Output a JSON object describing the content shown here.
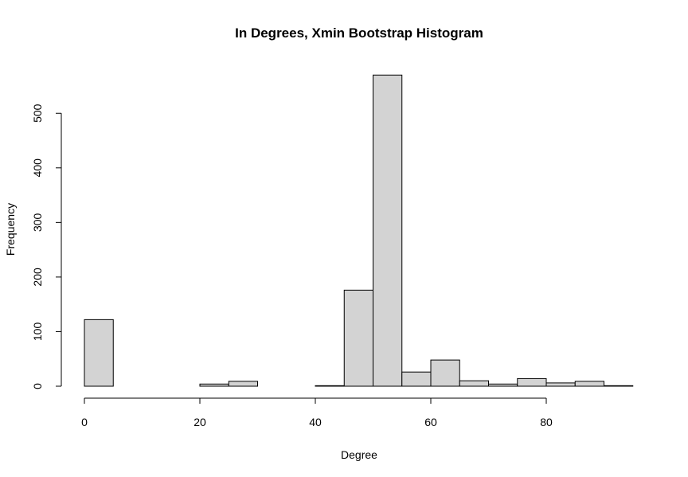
{
  "chart_data": {
    "type": "bar",
    "title": "In Degrees, Xmin Bootstrap Histogram",
    "xlabel": "Degree",
    "ylabel": "Frequency",
    "xlim": [
      0,
      95
    ],
    "ylim": [
      0,
      570
    ],
    "x_ticks": [
      0,
      20,
      40,
      60,
      80
    ],
    "y_ticks": [
      0,
      100,
      200,
      300,
      400,
      500
    ],
    "bin_width": 5,
    "bins": [
      {
        "start": 0,
        "end": 5,
        "count": 122
      },
      {
        "start": 5,
        "end": 10,
        "count": 0
      },
      {
        "start": 10,
        "end": 15,
        "count": 0
      },
      {
        "start": 15,
        "end": 20,
        "count": 0
      },
      {
        "start": 20,
        "end": 25,
        "count": 4
      },
      {
        "start": 25,
        "end": 30,
        "count": 9
      },
      {
        "start": 30,
        "end": 35,
        "count": 0
      },
      {
        "start": 35,
        "end": 40,
        "count": 0
      },
      {
        "start": 40,
        "end": 45,
        "count": 1
      },
      {
        "start": 45,
        "end": 50,
        "count": 176
      },
      {
        "start": 50,
        "end": 55,
        "count": 570
      },
      {
        "start": 55,
        "end": 60,
        "count": 26
      },
      {
        "start": 60,
        "end": 65,
        "count": 48
      },
      {
        "start": 65,
        "end": 70,
        "count": 10
      },
      {
        "start": 70,
        "end": 75,
        "count": 4
      },
      {
        "start": 75,
        "end": 80,
        "count": 14
      },
      {
        "start": 80,
        "end": 85,
        "count": 6
      },
      {
        "start": 85,
        "end": 90,
        "count": 9
      },
      {
        "start": 90,
        "end": 95,
        "count": 1
      }
    ],
    "bar_color": "#d3d3d3",
    "grid": false,
    "legend": "none"
  }
}
